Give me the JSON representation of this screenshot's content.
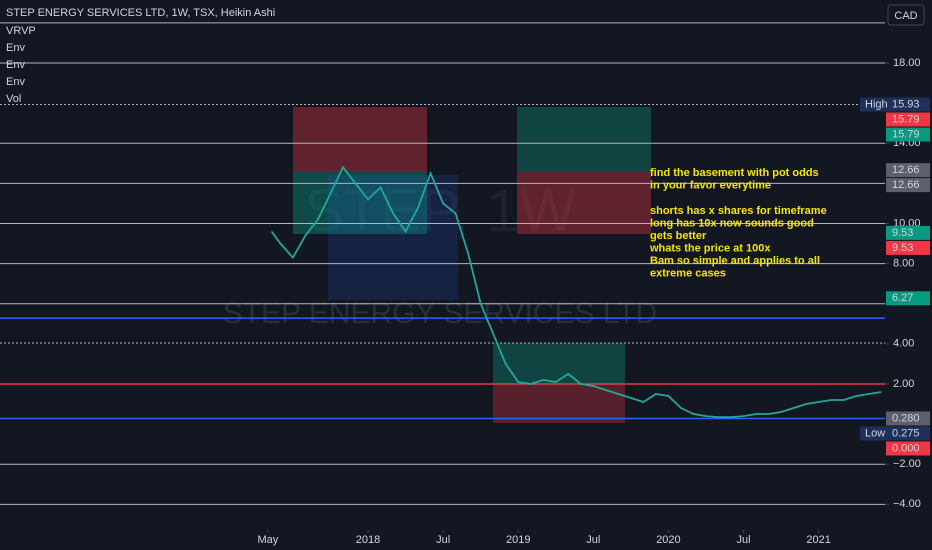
{
  "chart_data": {
    "type": "line",
    "title": "STEP ENERGY SERVICES LTD, 1W, TSX, Heikin Ashi",
    "indicators": [
      "VRVP",
      "Env",
      "Env",
      "Env",
      "Vol"
    ],
    "currency": "CAD",
    "watermark": "STEP ENERGY SERVICES LTD",
    "watermark_symbol": "STEP, 1W",
    "color": "#26a69a",
    "x": [
      4.3,
      5,
      6,
      7,
      8,
      9,
      10,
      11,
      12,
      13,
      14,
      15,
      16,
      17,
      18,
      19,
      20,
      21,
      22,
      23,
      24,
      25,
      26,
      27,
      28,
      29,
      30,
      31,
      32,
      33,
      34,
      35,
      36,
      37,
      38,
      39,
      40,
      41,
      42,
      43,
      44,
      45,
      46,
      47,
      48,
      49,
      50,
      51,
      52,
      53
    ],
    "values": [
      9.6,
      9.0,
      8.3,
      9.4,
      10.2,
      11.5,
      12.8,
      12.0,
      11.2,
      11.8,
      10.5,
      9.6,
      10.8,
      12.5,
      11.0,
      10.5,
      8.5,
      6.0,
      4.5,
      3.0,
      2.1,
      2.0,
      2.2,
      2.1,
      2.5,
      2.0,
      1.9,
      1.7,
      1.5,
      1.3,
      1.1,
      1.5,
      1.4,
      0.8,
      0.5,
      0.4,
      0.35,
      0.35,
      0.4,
      0.5,
      0.5,
      0.6,
      0.8,
      1.0,
      1.1,
      1.2,
      1.2,
      1.4,
      1.5,
      1.6
    ],
    "xlim": [
      -17.4,
      53.3
    ],
    "xticks": [
      {
        "value": 4,
        "label": "May"
      },
      {
        "value": 12,
        "label": "2018"
      },
      {
        "value": 18,
        "label": "Jul"
      },
      {
        "value": 24,
        "label": "2019"
      },
      {
        "value": 30,
        "label": "Jul"
      },
      {
        "value": 36,
        "label": "2020"
      },
      {
        "value": 42,
        "label": "Jul"
      },
      {
        "value": 48,
        "label": "2021"
      }
    ],
    "ylim": [
      -5.28,
      21.14
    ],
    "yticks": [
      {
        "value": 18,
        "label": "18.00"
      },
      {
        "value": 14,
        "label": "14.00"
      },
      {
        "value": 10,
        "label": "10.00"
      },
      {
        "value": 8,
        "label": "8.00"
      },
      {
        "value": 4,
        "label": "4.00"
      },
      {
        "value": 2,
        "label": "2.00"
      },
      {
        "value": -2,
        "label": "−2.00"
      },
      {
        "value": -4,
        "label": "−4.00"
      }
    ],
    "hlines": [
      {
        "value": 20,
        "color": "#b2b5be",
        "dashed": false
      },
      {
        "value": 18,
        "color": "#b2b5be",
        "dashed": false
      },
      {
        "value": 15.93,
        "color": "#b2b5be",
        "dashed": true
      },
      {
        "value": 14,
        "color": "#b2b5be",
        "dashed": false
      },
      {
        "value": 12,
        "color": "#b2b5be",
        "dashed": false
      },
      {
        "value": 10,
        "color": "#b2b5be",
        "dashed": false
      },
      {
        "value": 8,
        "color": "#b2b5be",
        "dashed": false
      },
      {
        "value": 6,
        "color": "#b2b5be",
        "dashed": false
      },
      {
        "value": 5.28,
        "color": "#2962ff",
        "dashed": false
      },
      {
        "value": 4.04,
        "color": "#b2b5be",
        "dashed": true
      },
      {
        "value": 2,
        "color": "#f23645",
        "dashed": false
      },
      {
        "value": 0.28,
        "color": "#2962ff",
        "dashed": false
      },
      {
        "value": -2,
        "color": "#b2b5be",
        "dashed": false
      },
      {
        "value": -4,
        "color": "#b2b5be",
        "dashed": false
      }
    ],
    "price_markers": [
      {
        "value": 15.93,
        "label": "15.93",
        "tag": "High",
        "color": "#1e2f5a"
      },
      {
        "value": 15.79,
        "label": "15.79",
        "color": "#f23645"
      },
      {
        "value": 15.79,
        "label": "15.79",
        "color": "#089981"
      },
      {
        "value": 12.66,
        "label": "12.66",
        "color": "#5d606b"
      },
      {
        "value": 12.66,
        "label": "12.66",
        "color": "#5d606b"
      },
      {
        "value": 9.53,
        "label": "9.53",
        "color": "#089981"
      },
      {
        "value": 9.53,
        "label": "9.53",
        "color": "#f23645"
      },
      {
        "value": 6.27,
        "label": "6.27",
        "color": "#089981"
      },
      {
        "value": 0.28,
        "label": "0.280",
        "color": "#5d606b"
      },
      {
        "value": 0.275,
        "label": "0.275",
        "tag": "Low",
        "color": "#1e2f5a"
      },
      {
        "value": 0,
        "label": "0.000",
        "color": "#f23645"
      }
    ],
    "annotation": [
      [
        "find the basement with pot odds",
        "in your favor  everytime"
      ],
      [
        "shorts has  x shares for timeframe",
        "long has 10x now sounds good",
        "gets better",
        "whats the  price at 100x",
        "Bam so simple and  applies to all",
        "  extreme cases"
      ]
    ]
  }
}
